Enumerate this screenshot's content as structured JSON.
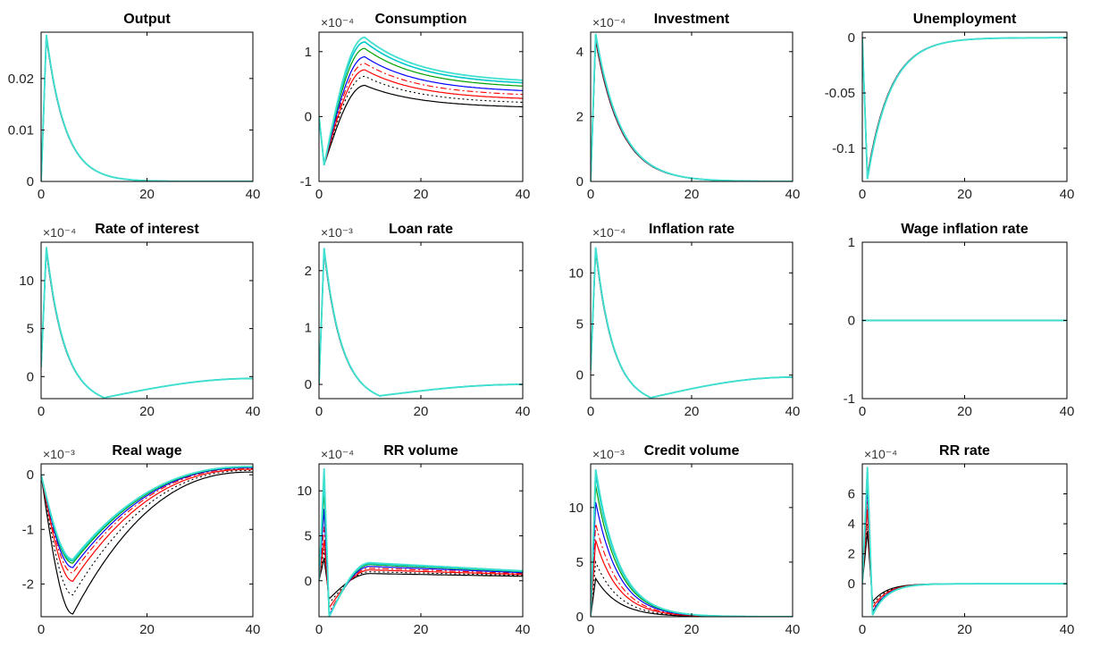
{
  "chart_data": [
    {
      "type": "line",
      "title": "Output",
      "exponent": "",
      "xlim": [
        0,
        40
      ],
      "ylim": [
        0,
        0.029
      ],
      "xticks": [
        "0",
        "20",
        "40"
      ],
      "xtick_values": [
        0,
        20,
        40
      ],
      "yticks": [
        "0",
        "0.01",
        "0.02"
      ],
      "ytick_values": [
        0,
        0.01,
        0.02
      ],
      "shape": {
        "kind": "spike_decay",
        "base": 0,
        "peak": 0.0285,
        "peak_t": 1,
        "decay": 0.28,
        "spread": 0.02
      },
      "series_colors": [
        "#000000",
        "#000000",
        "#ff0000",
        "#ff0000",
        "#0000ff",
        "#00a000",
        "#00c8c8",
        "#40e0d0"
      ]
    },
    {
      "type": "line",
      "title": "Consumption",
      "exponent": "×10⁻⁴",
      "xlim": [
        0,
        40
      ],
      "ylim": [
        -1,
        1.3
      ],
      "xticks": [
        "0",
        "20",
        "40"
      ],
      "xtick_values": [
        0,
        20,
        40
      ],
      "yticks": [
        "-1",
        "0",
        "1"
      ],
      "ytick_values": [
        -1,
        0,
        1
      ],
      "shape": {
        "kind": "dip_hump",
        "dip": -0.75,
        "dip_t": 1,
        "peaks": [
          0.48,
          0.62,
          0.72,
          0.82,
          0.92,
          1.05,
          1.15,
          1.22
        ],
        "peak_t": 9,
        "ends": [
          0.15,
          0.22,
          0.28,
          0.34,
          0.4,
          0.47,
          0.52,
          0.56
        ]
      },
      "series_colors": [
        "#000000",
        "#000000",
        "#ff0000",
        "#ff0000",
        "#0000ff",
        "#00a000",
        "#00c8c8",
        "#40e0d0"
      ]
    },
    {
      "type": "line",
      "title": "Investment",
      "exponent": "×10⁻⁴",
      "xlim": [
        0,
        40
      ],
      "ylim": [
        0,
        4.6
      ],
      "xticks": [
        "0",
        "20",
        "40"
      ],
      "xtick_values": [
        0,
        20,
        40
      ],
      "yticks": [
        "0",
        "2",
        "4"
      ],
      "ytick_values": [
        0,
        2,
        4
      ],
      "shape": {
        "kind": "spike_decay",
        "base": 0,
        "peak": 4.55,
        "peak_t": 1,
        "decay": 0.2,
        "spread": 0.05
      },
      "series_colors": [
        "#000000",
        "#000000",
        "#ff0000",
        "#ff0000",
        "#0000ff",
        "#00a000",
        "#00c8c8",
        "#40e0d0"
      ]
    },
    {
      "type": "line",
      "title": "Unemployment",
      "exponent": "",
      "xlim": [
        0,
        40
      ],
      "ylim": [
        -0.13,
        0.005
      ],
      "xticks": [
        "0",
        "20",
        "40"
      ],
      "xtick_values": [
        0,
        20,
        40
      ],
      "yticks": [
        "-0.1",
        "-0.05",
        "0"
      ],
      "ytick_values": [
        -0.1,
        -0.05,
        0
      ],
      "shape": {
        "kind": "spike_decay",
        "base": 0,
        "peak": -0.128,
        "peak_t": 1,
        "decay": 0.22,
        "spread": 0.03
      },
      "series_colors": [
        "#000000",
        "#000000",
        "#ff0000",
        "#ff0000",
        "#0000ff",
        "#00a000",
        "#00c8c8",
        "#40e0d0"
      ]
    },
    {
      "type": "line",
      "title": "Rate of interest",
      "exponent": "×10⁻⁴",
      "xlim": [
        0,
        40
      ],
      "ylim": [
        -2.3,
        14
      ],
      "xticks": [
        "0",
        "20",
        "40"
      ],
      "xtick_values": [
        0,
        20,
        40
      ],
      "yticks": [
        "0",
        "5",
        "10"
      ],
      "ytick_values": [
        0,
        5,
        10
      ],
      "shape": {
        "kind": "spike_undershoot",
        "start": 1,
        "peak": 13.5,
        "peak_t": 1,
        "trough": -2.2,
        "trough_t": 12,
        "end": -0.2
      },
      "series_colors": [
        "#000000",
        "#000000",
        "#ff0000",
        "#ff0000",
        "#0000ff",
        "#00a000",
        "#00c8c8",
        "#40e0d0"
      ]
    },
    {
      "type": "line",
      "title": "Loan rate",
      "exponent": "×10⁻³",
      "xlim": [
        0,
        40
      ],
      "ylim": [
        -0.25,
        2.5
      ],
      "xticks": [
        "0",
        "20",
        "40"
      ],
      "xtick_values": [
        0,
        20,
        40
      ],
      "yticks": [
        "0",
        "1",
        "2"
      ],
      "ytick_values": [
        0,
        1,
        2
      ],
      "shape": {
        "kind": "spike_undershoot",
        "start": 0,
        "peak": 2.4,
        "peak_t": 1,
        "trough": -0.2,
        "trough_t": 12,
        "end": 0
      },
      "series_colors": [
        "#000000",
        "#000000",
        "#ff0000",
        "#ff0000",
        "#0000ff",
        "#00a000",
        "#00c8c8",
        "#40e0d0"
      ]
    },
    {
      "type": "line",
      "title": "Inflation rate",
      "exponent": "×10⁻⁴",
      "xlim": [
        0,
        40
      ],
      "ylim": [
        -2.3,
        13
      ],
      "xticks": [
        "0",
        "20",
        "40"
      ],
      "xtick_values": [
        0,
        20,
        40
      ],
      "yticks": [
        "0",
        "5",
        "10"
      ],
      "ytick_values": [
        0,
        5,
        10
      ],
      "shape": {
        "kind": "spike_undershoot",
        "start": 0.5,
        "peak": 12.5,
        "peak_t": 1,
        "trough": -2.2,
        "trough_t": 12,
        "end": -0.2
      },
      "series_colors": [
        "#000000",
        "#000000",
        "#ff0000",
        "#ff0000",
        "#0000ff",
        "#00a000",
        "#00c8c8",
        "#40e0d0"
      ]
    },
    {
      "type": "line",
      "title": "Wage inflation rate",
      "exponent": "",
      "xlim": [
        0,
        40
      ],
      "ylim": [
        -1,
        1
      ],
      "xticks": [
        "0",
        "20",
        "40"
      ],
      "xtick_values": [
        0,
        20,
        40
      ],
      "yticks": [
        "-1",
        "0",
        "1"
      ],
      "ytick_values": [
        -1,
        0,
        1
      ],
      "shape": {
        "kind": "flat",
        "value": 0
      },
      "series_colors": [
        "#000000",
        "#000000",
        "#ff0000",
        "#ff0000",
        "#0000ff",
        "#00a000",
        "#00c8c8",
        "#40e0d0"
      ]
    },
    {
      "type": "line",
      "title": "Real wage",
      "exponent": "×10⁻³",
      "xlim": [
        0,
        40
      ],
      "ylim": [
        -2.6,
        0.2
      ],
      "xticks": [
        "0",
        "20",
        "40"
      ],
      "xtick_values": [
        0,
        20,
        40
      ],
      "yticks": [
        "-2",
        "-1",
        "0"
      ],
      "ytick_values": [
        -2,
        -1,
        0
      ],
      "shape": {
        "kind": "trough",
        "troughs": [
          -2.55,
          -2.2,
          -1.95,
          -1.8,
          -1.7,
          -1.62,
          -1.58,
          -1.55
        ],
        "trough_t": 6,
        "ends": [
          0.05,
          0.08,
          0.1,
          0.12,
          0.13,
          0.14,
          0.15,
          0.15
        ]
      },
      "series_colors": [
        "#000000",
        "#000000",
        "#ff0000",
        "#ff0000",
        "#0000ff",
        "#00a000",
        "#00c8c8",
        "#40e0d0"
      ]
    },
    {
      "type": "line",
      "title": "RR volume",
      "exponent": "×10⁻⁴",
      "xlim": [
        0,
        40
      ],
      "ylim": [
        -4,
        13
      ],
      "xticks": [
        "0",
        "20",
        "40"
      ],
      "xtick_values": [
        0,
        20,
        40
      ],
      "yticks": [
        "0",
        "5",
        "10"
      ],
      "ytick_values": [
        0,
        5,
        10
      ],
      "shape": {
        "kind": "rr_volume",
        "spikes": [
          2.5,
          3.5,
          4.5,
          6,
          8,
          10,
          11.5,
          12.5
        ],
        "dips": [
          -2,
          -2.5,
          -3,
          -3.5,
          -3.8,
          -4,
          -4,
          -4
        ],
        "humps": [
          0.8,
          1.0,
          1.2,
          1.4,
          1.6,
          1.8,
          1.9,
          2.0
        ],
        "ends": [
          0.5,
          0.6,
          0.7,
          0.8,
          0.9,
          1.0,
          1.05,
          1.1
        ]
      },
      "series_colors": [
        "#000000",
        "#000000",
        "#ff0000",
        "#ff0000",
        "#0000ff",
        "#00a000",
        "#00c8c8",
        "#40e0d0"
      ]
    },
    {
      "type": "line",
      "title": "Credit volume",
      "exponent": "×10⁻³",
      "xlim": [
        0,
        40
      ],
      "ylim": [
        0,
        14
      ],
      "xticks": [
        "0",
        "20",
        "40"
      ],
      "xtick_values": [
        0,
        20,
        40
      ],
      "yticks": [
        "0",
        "5",
        "10"
      ],
      "ytick_values": [
        0,
        5,
        10
      ],
      "shape": {
        "kind": "multi_decay",
        "peaks": [
          3.5,
          5,
          7,
          8.5,
          10.5,
          12,
          13,
          13.5
        ],
        "peak_t": 1,
        "decay": 0.22
      },
      "series_colors": [
        "#000000",
        "#000000",
        "#ff0000",
        "#ff0000",
        "#0000ff",
        "#00a000",
        "#00c8c8",
        "#40e0d0"
      ]
    },
    {
      "type": "line",
      "title": "RR rate",
      "exponent": "×10⁻⁴",
      "xlim": [
        0,
        40
      ],
      "ylim": [
        -2.2,
        8
      ],
      "xticks": [
        "0",
        "20",
        "40"
      ],
      "xtick_values": [
        0,
        20,
        40
      ],
      "yticks": [
        "0",
        "2",
        "4",
        "6"
      ],
      "ytick_values": [
        0,
        2,
        4,
        6
      ],
      "shape": {
        "kind": "rr_rate",
        "spikes": [
          3.5,
          4,
          5,
          5.5,
          6.5,
          7,
          7.5,
          7.8
        ],
        "dips": [
          -1.2,
          -1.4,
          -1.6,
          -1.8,
          -1.9,
          -2,
          -2.1,
          -2.1
        ],
        "dip_t": 2
      },
      "series_colors": [
        "#000000",
        "#000000",
        "#ff0000",
        "#ff0000",
        "#0000ff",
        "#00a000",
        "#00c8c8",
        "#40e0d0"
      ]
    }
  ]
}
